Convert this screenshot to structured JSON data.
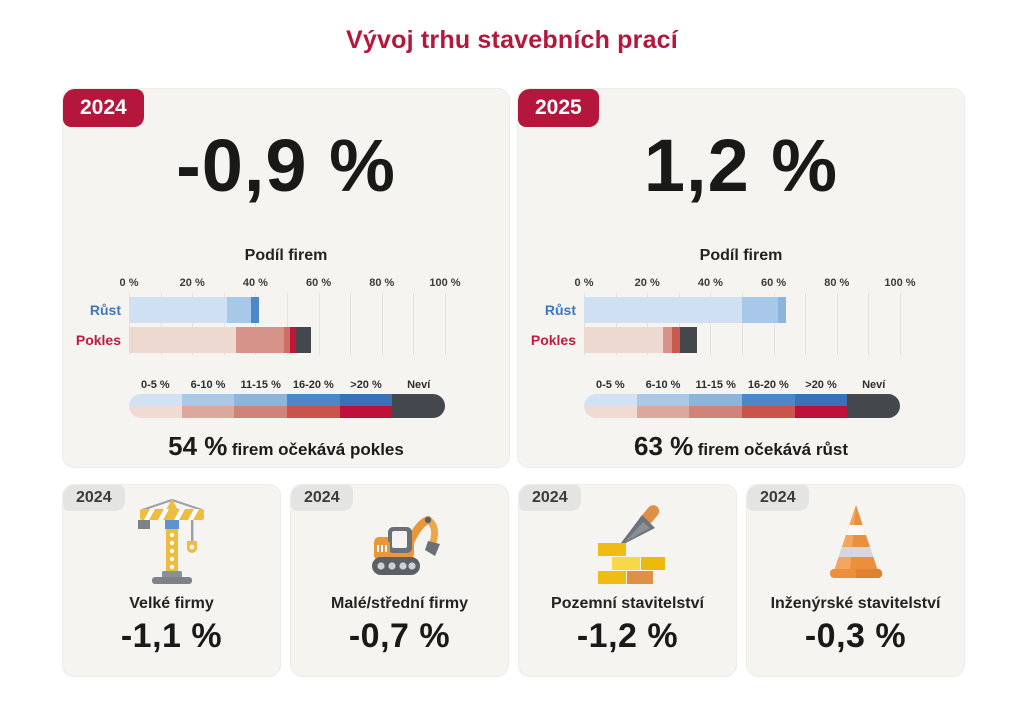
{
  "title": "Vývoj trhu stavebních prací",
  "colors": {
    "accent_red": "#b5173c",
    "card_bg": "#f5f4f1",
    "ruest_blue": "#3b76c3",
    "pokles_red": "#c11a3e",
    "nevi_gray": "#44484c"
  },
  "cards": [
    {
      "badge": "2024",
      "headline": "-0,9 %",
      "subtitle": "Podíl firem",
      "summary_value": "54 %",
      "summary_text": "firem očekává pokles"
    },
    {
      "badge": "2025",
      "headline": "1,2 %",
      "subtitle": "Podíl firem",
      "summary_value": "63 %",
      "summary_text": "firem očekává růst"
    }
  ],
  "legend": {
    "labels": [
      "0-5 %",
      "6-10 %",
      "11-15 %",
      "16-20 %",
      ">20 %",
      "Neví"
    ],
    "blue_shades": [
      "#d3e2f3",
      "#a7c8e8",
      "#8cb5de",
      "#4c88c8",
      "#3a72b8"
    ],
    "red_shades": [
      "#f0dbd4",
      "#dca79d",
      "#cf837a",
      "#c8544b",
      "#c00f38"
    ],
    "nevi_color": "#44484c"
  },
  "chart_data": [
    {
      "type": "bar",
      "orientation": "horizontal",
      "title": "Podíl firem (2024)",
      "xlim": [
        0,
        100
      ],
      "axis_ticks": [
        "0 %",
        "20 %",
        "40 %",
        "60 %",
        "80 %",
        "100 %"
      ],
      "grid": true,
      "rows": [
        {
          "name": "Růst",
          "label_color": "#3b76c3",
          "total": 41,
          "segments": [
            {
              "category": "0-5 %",
              "value": 31,
              "color": "#cfe0f2"
            },
            {
              "category": "6-10 %",
              "value": 7.5,
              "color": "#a7c8e8"
            },
            {
              "category": "16-20 %",
              "value": 2.5,
              "color": "#4c88c8"
            }
          ]
        },
        {
          "name": "Pokles",
          "label_color": "#c11a3e",
          "total": 57.5,
          "segments": [
            {
              "category": "0-5 %",
              "value": 34,
              "color": "#eed9d1"
            },
            {
              "category": "6-10 %",
              "value": 15,
              "color": "#d5938a"
            },
            {
              "category": "11-15 %",
              "value": 2,
              "color": "#cd6e63"
            },
            {
              "category": ">20 %",
              "value": 2,
              "color": "#c1153b"
            },
            {
              "category": "Neví",
              "value": 4.5,
              "color": "#44484c"
            }
          ]
        }
      ]
    },
    {
      "type": "bar",
      "orientation": "horizontal",
      "title": "Podíl firem (2025)",
      "xlim": [
        0,
        100
      ],
      "axis_ticks": [
        "0 %",
        "20 %",
        "40 %",
        "60 %",
        "80 %",
        "100 %"
      ],
      "grid": true,
      "rows": [
        {
          "name": "Růst",
          "label_color": "#3b76c3",
          "total": 64,
          "segments": [
            {
              "category": "0-5 %",
              "value": 50,
              "color": "#cfe0f2"
            },
            {
              "category": "6-10 %",
              "value": 11.5,
              "color": "#a7c8e8"
            },
            {
              "category": "11-15 %",
              "value": 2.5,
              "color": "#8cb5de"
            }
          ]
        },
        {
          "name": "Pokles",
          "label_color": "#c11a3e",
          "total": 35.7,
          "segments": [
            {
              "category": "0-5 %",
              "value": 25,
              "color": "#eed9d1"
            },
            {
              "category": "6-10 %",
              "value": 3,
              "color": "#d5938a"
            },
            {
              "category": ">20 %",
              "value": 2.3,
              "color": "#c85a50"
            },
            {
              "category": "Neví",
              "value": 5.4,
              "color": "#44484c"
            }
          ]
        }
      ]
    }
  ],
  "sector_cards": [
    {
      "badge": "2024",
      "label": "Velké firmy",
      "value": "-1,1 %",
      "icon": "tower-crane-icon"
    },
    {
      "badge": "2024",
      "label": "Malé/střední firmy",
      "value": "-0,7 %",
      "icon": "excavator-icon"
    },
    {
      "badge": "2024",
      "label": "Pozemní stavitelství",
      "value": "-1,2 %",
      "icon": "trowel-bricks-icon"
    },
    {
      "badge": "2024",
      "label": "Inženýrské stavitelství",
      "value": "-0,3 %",
      "icon": "traffic-cone-icon"
    }
  ]
}
